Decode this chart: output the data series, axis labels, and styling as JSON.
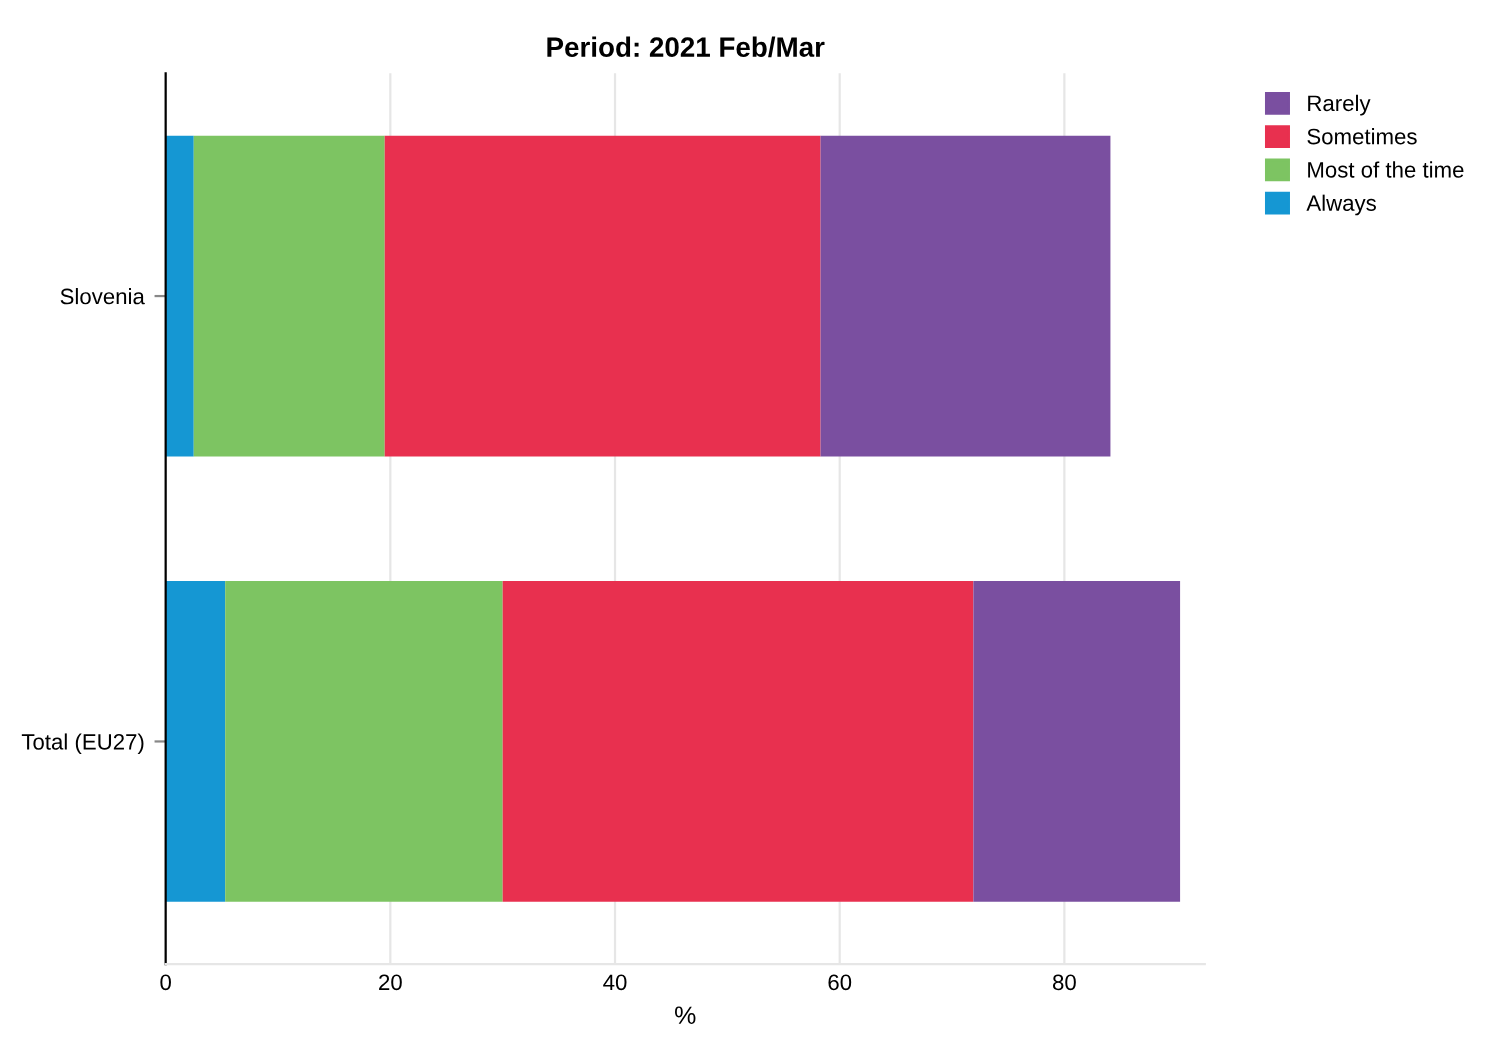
{
  "chart_data": {
    "type": "bar",
    "title": "Period: 2021 Feb/Mar",
    "orientation": "horizontal",
    "stacked": true,
    "categories": [
      "Slovenia",
      "Total (EU27)"
    ],
    "series": [
      {
        "name": "Always",
        "color": "#1597d3",
        "values": [
          2.5,
          5.3
        ]
      },
      {
        "name": "Most of the time",
        "color": "#7dc462",
        "values": [
          17.0,
          24.7
        ]
      },
      {
        "name": "Sometimes",
        "color": "#e8304f",
        "values": [
          38.8,
          41.9
        ]
      },
      {
        "name": "Rarely",
        "color": "#7a4fa0",
        "values": [
          25.8,
          18.4
        ]
      }
    ],
    "xlabel": "%",
    "xlim": [
      0,
      92.5
    ],
    "xticks": [
      0,
      20,
      40,
      60,
      80
    ],
    "grid": "x",
    "legend": "top right"
  }
}
